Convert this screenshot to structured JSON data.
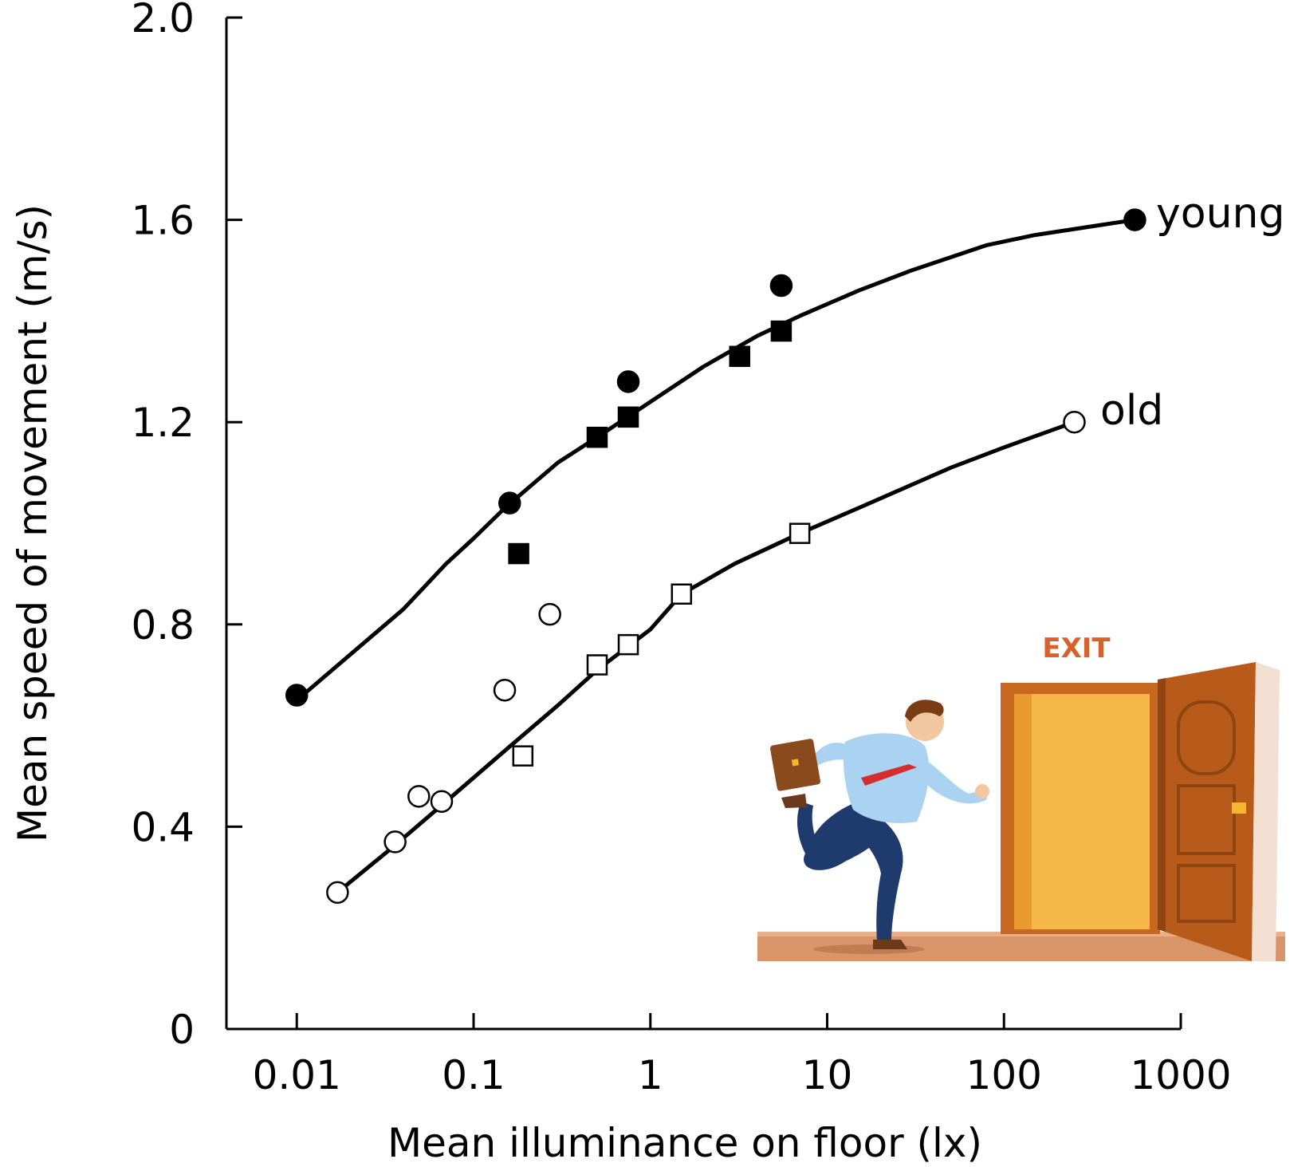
{
  "chart_data": {
    "type": "scatter",
    "xlabel": "Mean illuminance on floor (lx)",
    "ylabel": "Mean speed of movement (m/s)",
    "x_scale": "log",
    "xlim": [
      0.004,
      1000
    ],
    "ylim": [
      0,
      2.0
    ],
    "x_ticks": [
      0.01,
      0.1,
      1,
      10,
      100,
      1000
    ],
    "x_tick_labels": [
      "0.01",
      "0.1",
      "1",
      "10",
      "100",
      "1000"
    ],
    "y_ticks": [
      0,
      0.4,
      0.8,
      1.2,
      1.6,
      2.0
    ],
    "y_tick_labels": [
      "0",
      "0.4",
      "0.8",
      "1.2",
      "1.6",
      "2.0"
    ],
    "grid": false,
    "series": [
      {
        "name": "young",
        "curve": [
          [
            0.01,
            0.65
          ],
          [
            0.04,
            0.83
          ],
          [
            0.07,
            0.92
          ],
          [
            0.1,
            0.97
          ],
          [
            0.15,
            1.03
          ],
          [
            0.3,
            1.12
          ],
          [
            0.5,
            1.17
          ],
          [
            1,
            1.24
          ],
          [
            2,
            1.31
          ],
          [
            4,
            1.37
          ],
          [
            7,
            1.41
          ],
          [
            15,
            1.46
          ],
          [
            30,
            1.5
          ],
          [
            80,
            1.55
          ],
          [
            150,
            1.57
          ],
          [
            550,
            1.6
          ]
        ],
        "points_circle": [
          [
            0.01,
            0.66
          ],
          [
            0.16,
            1.04
          ],
          [
            0.75,
            1.28
          ],
          [
            5.5,
            1.47
          ],
          [
            550,
            1.6
          ]
        ],
        "points_square": [
          [
            0.18,
            0.94
          ],
          [
            0.5,
            1.17
          ],
          [
            0.75,
            1.21
          ],
          [
            3.2,
            1.33
          ],
          [
            5.5,
            1.38
          ]
        ]
      },
      {
        "name": "old",
        "curve": [
          [
            0.017,
            0.27
          ],
          [
            0.035,
            0.36
          ],
          [
            0.07,
            0.45
          ],
          [
            0.15,
            0.55
          ],
          [
            0.3,
            0.64
          ],
          [
            0.5,
            0.71
          ],
          [
            1,
            0.79
          ],
          [
            1.5,
            0.86
          ],
          [
            3,
            0.92
          ],
          [
            7,
            0.98
          ],
          [
            15,
            1.03
          ],
          [
            50,
            1.11
          ],
          [
            100,
            1.15
          ],
          [
            250,
            1.2
          ]
        ],
        "points_circle": [
          [
            0.017,
            0.27
          ],
          [
            0.036,
            0.37
          ],
          [
            0.049,
            0.46
          ],
          [
            0.066,
            0.45
          ],
          [
            0.15,
            0.67
          ],
          [
            0.27,
            0.82
          ],
          [
            250,
            1.2
          ]
        ],
        "points_square": [
          [
            0.19,
            0.54
          ],
          [
            0.5,
            0.72
          ],
          [
            0.75,
            0.76
          ],
          [
            1.5,
            0.86
          ],
          [
            7,
            0.98
          ]
        ]
      }
    ],
    "annotations": {
      "sign_text": "EXIT"
    }
  },
  "colors": {
    "ink": "#000000",
    "door_frame": "#c8671f",
    "door_inner": "#f7b84a",
    "door_leaf": "#b85a1a",
    "floor": "#d9956a",
    "shirt": "#a9d3f0",
    "pants": "#1f3b6e",
    "tie": "#d62e2e",
    "briefcase": "#8a4a1e",
    "skin": "#f2c7a0",
    "hair": "#7a3c14",
    "exit_sign": "#d9622a"
  }
}
